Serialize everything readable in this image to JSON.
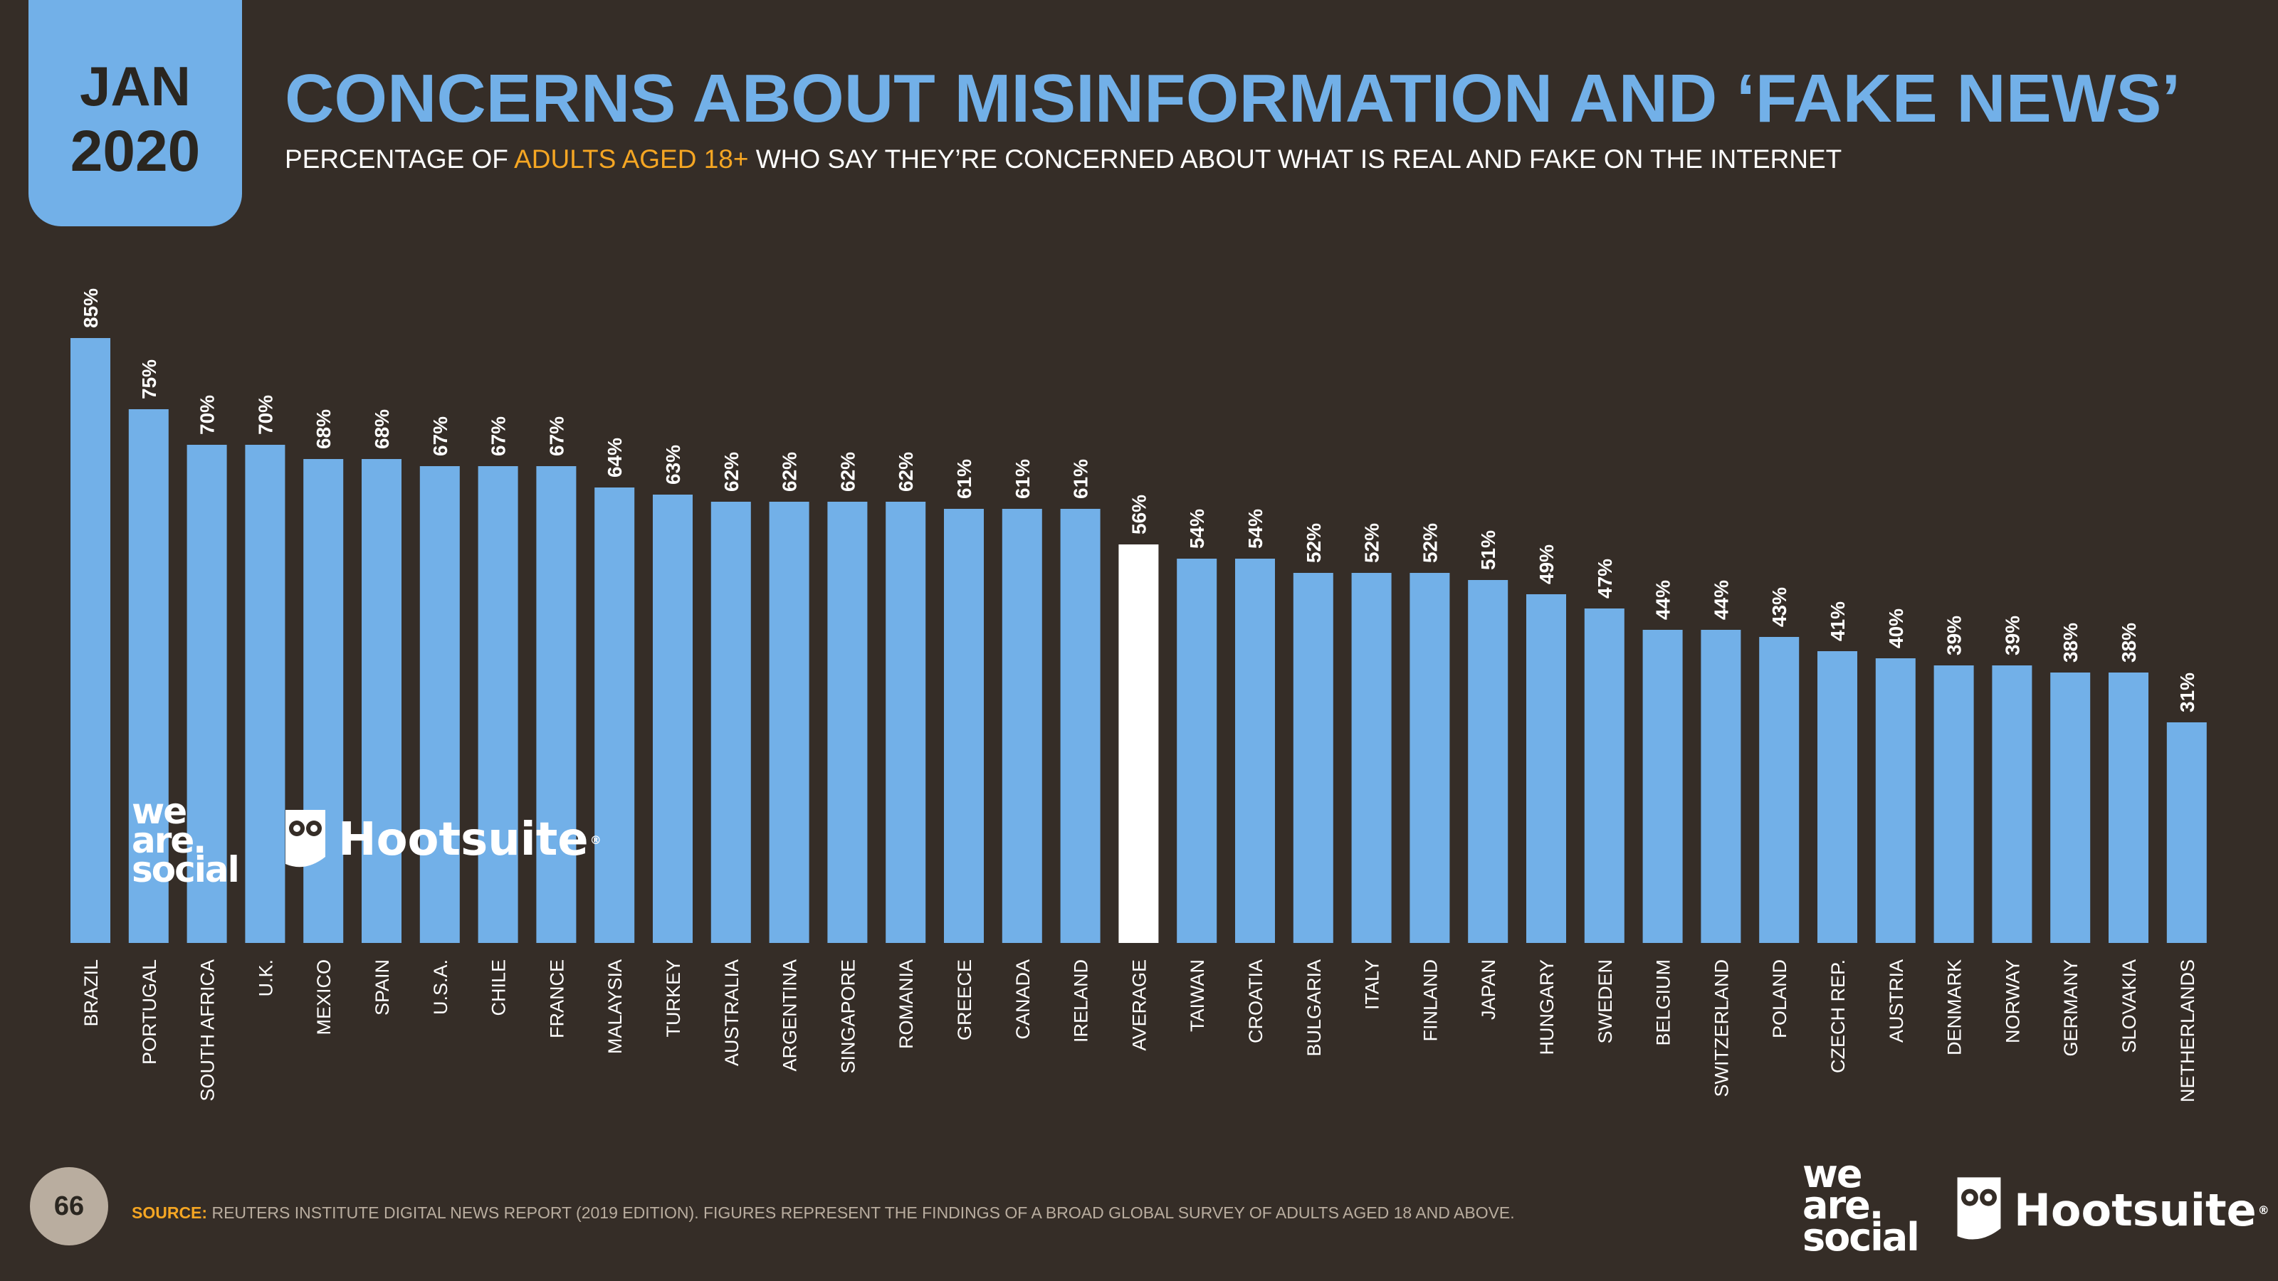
{
  "header": {
    "month": "JAN",
    "year": "2020",
    "title": "CONCERNS ABOUT MISINFORMATION AND ‘FAKE NEWS’",
    "subtitle_pre": "PERCENTAGE OF ",
    "subtitle_accent": "ADULTS AGED 18+",
    "subtitle_post": " WHO SAY THEY’RE CONCERNED ABOUT WHAT IS REAL AND FAKE ON THE INTERNET"
  },
  "footer": {
    "page_number": "66",
    "source_label": "SOURCE:",
    "source_text": "REUTERS INSTITUTE DIGITAL NEWS REPORT (2019 EDITION). FIGURES REPRESENT THE FINDINGS OF A BROAD GLOBAL SURVEY OF ADULTS AGED 18 AND ABOVE."
  },
  "logos": {
    "wearesocial_lines": [
      "we",
      "are.",
      "social"
    ],
    "hootsuite": "Hootsuite",
    "hootsuite_mark": "®"
  },
  "colors": {
    "background": "#352d27",
    "bar": "#72b0e8",
    "highlight_bar": "#ffffff",
    "label": "#ffffff",
    "accent": "#f5a623"
  },
  "chart_data": {
    "type": "bar",
    "title": "CONCERNS ABOUT MISINFORMATION AND ‘FAKE NEWS’",
    "xlabel": "",
    "ylabel": "",
    "ylim": [
      0,
      100
    ],
    "grid": false,
    "unit": "%",
    "highlight_category": "AVERAGE",
    "categories": [
      "BRAZIL",
      "PORTUGAL",
      "SOUTH AFRICA",
      "U.K.",
      "MEXICO",
      "SPAIN",
      "U.S.A.",
      "CHILE",
      "FRANCE",
      "MALAYSIA",
      "TURKEY",
      "AUSTRALIA",
      "ARGENTINA",
      "SINGAPORE",
      "ROMANIA",
      "GREECE",
      "CANADA",
      "IRELAND",
      "AVERAGE",
      "TAIWAN",
      "CROATIA",
      "BULGARIA",
      "ITALY",
      "FINLAND",
      "JAPAN",
      "HUNGARY",
      "SWEDEN",
      "BELGIUM",
      "SWITZERLAND",
      "POLAND",
      "CZECH REP.",
      "AUSTRIA",
      "DENMARK",
      "NORWAY",
      "GERMANY",
      "SLOVAKIA",
      "NETHERLANDS"
    ],
    "values": [
      85,
      75,
      70,
      70,
      68,
      68,
      67,
      67,
      67,
      64,
      63,
      62,
      62,
      62,
      62,
      61,
      61,
      61,
      56,
      54,
      54,
      52,
      52,
      52,
      51,
      49,
      47,
      44,
      44,
      43,
      41,
      40,
      39,
      39,
      38,
      38,
      31
    ],
    "labels": [
      "85%",
      "75%",
      "70%",
      "70%",
      "68%",
      "68%",
      "67%",
      "67%",
      "67%",
      "64%",
      "63%",
      "62%",
      "62%",
      "62%",
      "62%",
      "61%",
      "61%",
      "61%",
      "56%",
      "54%",
      "54%",
      "52%",
      "52%",
      "52%",
      "51%",
      "49%",
      "47%",
      "44%",
      "44%",
      "43%",
      "41%",
      "40%",
      "39%",
      "39%",
      "38%",
      "38%",
      "31%"
    ]
  }
}
